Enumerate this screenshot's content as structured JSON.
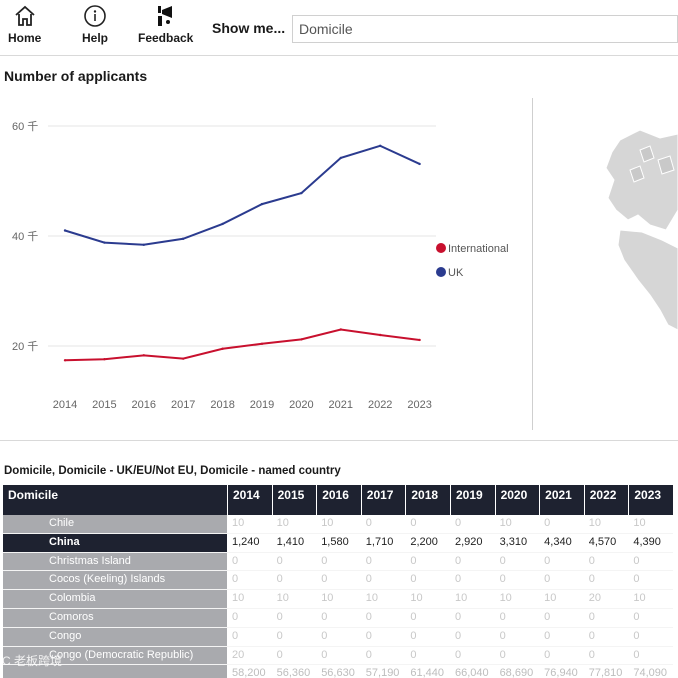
{
  "toolbar": {
    "home_label": "Home",
    "help_label": "Help",
    "feedback_label": "Feedback",
    "show_me_label": "Show me...",
    "dropdown_value": "Domicile"
  },
  "chart_title": "Number of applicants",
  "chart_data": {
    "type": "line",
    "title": "Number of applicants",
    "x": [
      "2014",
      "2015",
      "2016",
      "2017",
      "2018",
      "2019",
      "2020",
      "2021",
      "2022",
      "2023"
    ],
    "y_ticks": [
      "20 千",
      "40 千",
      "60 千"
    ],
    "ylim": [
      12000,
      62000
    ],
    "grid": true,
    "legend_position": "right",
    "series": [
      {
        "name": "International",
        "color": "#c8102e",
        "values": [
          17400,
          17600,
          18300,
          17700,
          19500,
          20400,
          21200,
          23000,
          22000,
          21100
        ]
      },
      {
        "name": "UK",
        "color": "#2b3b8f",
        "values": [
          41000,
          38800,
          38400,
          39500,
          42200,
          45800,
          47800,
          54200,
          56400,
          53100
        ]
      }
    ]
  },
  "table": {
    "title": "Domicile, Domicile - UK/EU/Not EU, Domicile - named country",
    "header": [
      "Domicile",
      "2014",
      "2015",
      "2016",
      "2017",
      "2018",
      "2019",
      "2020",
      "2021",
      "2022",
      "2023"
    ],
    "rows": [
      {
        "name": "Chile",
        "values": [
          "10",
          "10",
          "10",
          "0",
          "0",
          "0",
          "10",
          "0",
          "10",
          "10"
        ],
        "selected": false
      },
      {
        "name": "China",
        "values": [
          "1,240",
          "1,410",
          "1,580",
          "1,710",
          "2,200",
          "2,920",
          "3,310",
          "4,340",
          "4,570",
          "4,390"
        ],
        "selected": true
      },
      {
        "name": "Christmas Island",
        "values": [
          "0",
          "0",
          "0",
          "0",
          "0",
          "0",
          "0",
          "0",
          "0",
          "0"
        ],
        "selected": false
      },
      {
        "name": "Cocos (Keeling) Islands",
        "values": [
          "0",
          "0",
          "0",
          "0",
          "0",
          "0",
          "0",
          "0",
          "0",
          "0"
        ],
        "selected": false
      },
      {
        "name": "Colombia",
        "values": [
          "10",
          "10",
          "10",
          "10",
          "10",
          "10",
          "10",
          "10",
          "20",
          "10"
        ],
        "selected": false
      },
      {
        "name": "Comoros",
        "values": [
          "0",
          "0",
          "0",
          "0",
          "0",
          "0",
          "0",
          "0",
          "0",
          "0"
        ],
        "selected": false
      },
      {
        "name": "Congo",
        "values": [
          "0",
          "0",
          "0",
          "0",
          "0",
          "0",
          "0",
          "0",
          "0",
          "0"
        ],
        "selected": false
      },
      {
        "name": "Congo (Democratic Republic)",
        "values": [
          "20",
          "0",
          "0",
          "0",
          "0",
          "0",
          "0",
          "0",
          "0",
          "0"
        ],
        "selected": false
      }
    ],
    "total": {
      "name": "",
      "values": [
        "58,200",
        "56,360",
        "56,630",
        "57,190",
        "61,440",
        "66,040",
        "68,690",
        "76,940",
        "77,810",
        "74,090"
      ]
    }
  },
  "watermark": "C 老板跨境"
}
